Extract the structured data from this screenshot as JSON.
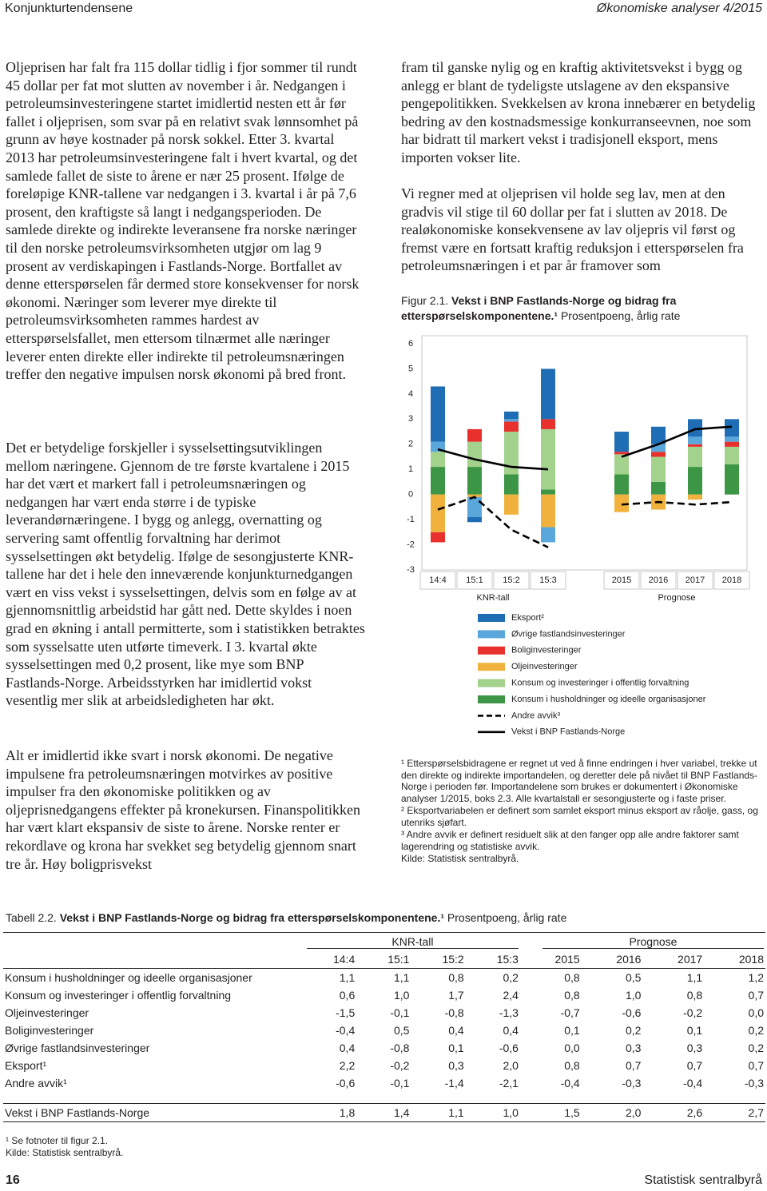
{
  "header": {
    "left": "Konjunkturtendensene",
    "right": "Økonomiske analyser 4/2015"
  },
  "left_column": {
    "paragraphs": [
      "Oljeprisen har falt fra 115 dollar tidlig i fjor sommer til rundt 45 dollar per fat mot slutten av november i år. Nedgangen i petroleumsinvesteringene startet imidlertid nesten ett år før fallet i oljeprisen, som svar på en relativt svak lønnsomhet på grunn av høye kostnader på norsk sokkel. Etter 3. kvartal 2013 har petroleumsinvesteringene falt i hvert kvartal, og det samlede fallet de siste to årene er nær 25 prosent. Ifølge de foreløpige KNR-tallene var nedgangen i 3. kvartal i år på 7,6 prosent, den kraftigste så langt i nedgangsperioden. De samlede direkte og indirekte leveransene fra norske næringer til den norske petroleumsvirksomheten utgjør om lag 9 prosent av verdiskapingen i Fastlands-Norge. Bortfallet av denne etterspørselen får dermed store konsekvenser for norsk økonomi. Næringer som leverer mye direkte til petroleumsvirksomheten rammes hardest av etterspørselsfallet, men ettersom tilnærmet alle næringer leverer enten direkte eller indirekte til petroleumsnæringen treffer den negative impulsen norsk økonomi på bred front.",
      "Det er betydelige forskjeller i sysselsettingsutviklingen mellom næringene. Gjennom de tre første kvartalene i 2015 har det vært et markert fall i petroleumsnæringen og nedgangen har vært enda større i de typiske leverandørnæringene. I bygg og anlegg, overnatting og servering samt offentlig forvaltning har derimot sysselsettingen økt betydelig. Ifølge de sesongjusterte KNR-tallene har det i hele den inneværende konjunkturnedgangen vært en viss vekst i sysselsettingen, delvis som en følge av at gjennomsnittlig arbeidstid har gått ned. Dette skyldes i noen grad en økning i antall permitterte, som i statistikken betraktes som sysselsatte uten utførte timeverk. I 3. kvartal økte sysselsettingen med 0,2 prosent, like mye som BNP Fastlands-Norge. Arbeidsstyrken har imidlertid vokst vesentlig mer slik at arbeidsledigheten har økt.",
      "Alt er imidlertid ikke svart i norsk økonomi. De negative impulsene fra petroleumsnæringen motvirkes av positive impulser fra den økonomiske politikken og av oljeprisnedgangens effekter på kronekursen. Finanspolitikken har vært klart ekspansiv de siste to årene. Norske renter er rekordlave og krona har svekket seg betydelig gjennom snart tre år. Høy boligprisvekst"
    ]
  },
  "right_column": {
    "paragraphs": [
      "fram til ganske nylig og en kraftig aktivitetsvekst i bygg og anlegg er blant de tydeligste utslagene av den ekspansive pengepolitikken. Svekkelsen av krona innebærer en betydelig bedring av den kostnadsmessige konkurranseevnen, noe som har bidratt til markert vekst i tradisjonell eksport, mens importen vokser lite.",
      "Vi regner med at oljeprisen vil holde seg lav, men at den gradvis vil stige til 60 dollar per fat i slutten av 2018. De realøkonomiske konsekvensene av lav oljepris vil først og fremst være en fortsatt kraftig reduksjon i etterspørselen fra petroleumsnæringen i et par år framover som"
    ]
  },
  "chart_data": {
    "type": "bar",
    "stacked": true,
    "figure_label": "Figur 2.1.",
    "title": "Vekst i BNP Fastlands-Norge og bidrag fra etterspørselskomponentene.¹",
    "subtitle": "Prosentpoeng, årlig rate",
    "categories": [
      "14:4",
      "15:1",
      "15:2",
      "15:3",
      null,
      "2015",
      "2016",
      "2017",
      "2018"
    ],
    "group_labels": [
      "KNR-tall",
      "Prognose"
    ],
    "ylim": [
      -3,
      6
    ],
    "yticks": [
      -3,
      -2,
      -1,
      0,
      1,
      2,
      3,
      4,
      5,
      6
    ],
    "grid": false,
    "legend": "bottom",
    "series": [
      {
        "name": "Eksport²",
        "type": "bar",
        "color": "#1f6db5",
        "values": [
          2.2,
          -0.2,
          0.3,
          2.0,
          null,
          0.8,
          0.7,
          0.7,
          0.7
        ]
      },
      {
        "name": "Øvrige fastlandsinvesteringer",
        "type": "bar",
        "color": "#5aa7dc",
        "values": [
          0.4,
          -0.8,
          0.1,
          -0.6,
          null,
          0.0,
          0.3,
          0.3,
          0.2
        ]
      },
      {
        "name": "Boliginvesteringer",
        "type": "bar",
        "color": "#e8302d",
        "values": [
          -0.4,
          0.5,
          0.4,
          0.4,
          null,
          0.1,
          0.2,
          0.1,
          0.2
        ]
      },
      {
        "name": "Oljeinvesteringer",
        "type": "bar",
        "color": "#f0b23c",
        "values": [
          -1.5,
          -0.1,
          -0.8,
          -1.3,
          null,
          -0.7,
          -0.6,
          -0.2,
          0.0
        ]
      },
      {
        "name": "Konsum og investeringer i offentlig forvaltning",
        "type": "bar",
        "color": "#a3d28d",
        "values": [
          0.6,
          1.0,
          1.7,
          2.4,
          null,
          0.8,
          1.0,
          0.8,
          0.7
        ]
      },
      {
        "name": "Konsum i husholdninger og ideelle organisasjoner",
        "type": "bar",
        "color": "#3c9645",
        "values": [
          1.1,
          1.1,
          0.8,
          0.2,
          null,
          0.8,
          0.5,
          1.1,
          1.2
        ]
      },
      {
        "name": "Andre avvik³",
        "type": "line",
        "dash": true,
        "color": "#000000",
        "values": [
          -0.6,
          -0.1,
          -1.4,
          -2.1,
          null,
          -0.4,
          -0.3,
          -0.4,
          -0.3
        ]
      },
      {
        "name": "Vekst i BNP Fastlands-Norge",
        "type": "line",
        "dash": false,
        "color": "#000000",
        "values": [
          1.8,
          1.4,
          1.1,
          1.0,
          null,
          1.5,
          2.0,
          2.6,
          2.7
        ]
      }
    ]
  },
  "figure_notes": {
    "footnotes": [
      "¹ Etterspørselsbidragene er regnet ut ved å finne endringen i hver variabel, trekke ut den direkte og indirekte importandelen, og deretter dele på nivået til BNP Fastlands-Norge i perioden før. Importandelene som brukes er dokumentert i Økonomiske analyser 1/2015, boks 2.3. Alle kvartalstall er sesongjusterte og i faste priser.",
      "² Eksportvariabelen er definert som samlet eksport minus eksport av råolje, gass, og utenriks sjøfart.",
      "³ Andre avvik er definert residuelt slik at den fanger opp alle andre faktorer samt lagerendring og statistiske avvik."
    ],
    "source": "Kilde: Statistisk sentralbyrå."
  },
  "table": {
    "label": "Tabell 2.2.",
    "title": "Vekst i BNP Fastlands-Norge og bidrag fra etterspørselskomponentene.¹",
    "subtitle": "Prosentpoeng, årlig rate",
    "group_headers": [
      "KNR-tall",
      "Prognose"
    ],
    "columns": [
      "14:4",
      "15:1",
      "15:2",
      "15:3",
      "2015",
      "2016",
      "2017",
      "2018"
    ],
    "rows": [
      [
        "Konsum i husholdninger og ideelle organisasjoner",
        "1,1",
        "1,1",
        "0,8",
        "0,2",
        "0,8",
        "0,5",
        "1,1",
        "1,2"
      ],
      [
        "Konsum og investeringer i offentlig forvaltning",
        "0,6",
        "1,0",
        "1,7",
        "2,4",
        "0,8",
        "1,0",
        "0,8",
        "0,7"
      ],
      [
        "Oljeinvesteringer",
        "-1,5",
        "-0,1",
        "-0,8",
        "-1,3",
        "-0,7",
        "-0,6",
        "-0,2",
        "0,0"
      ],
      [
        "Boliginvesteringer",
        "-0,4",
        "0,5",
        "0,4",
        "0,4",
        "0,1",
        "0,2",
        "0,1",
        "0,2"
      ],
      [
        "Øvrige fastlandsinvesteringer",
        "0,4",
        "-0,8",
        "0,1",
        "-0,6",
        "0,0",
        "0,3",
        "0,3",
        "0,2"
      ],
      [
        "Eksport¹",
        "2,2",
        "-0,2",
        "0,3",
        "2,0",
        "0,8",
        "0,7",
        "0,7",
        "0,7"
      ],
      [
        "Andre avvik¹",
        "-0,6",
        "-0,1",
        "-1,4",
        "-2,1",
        "-0,4",
        "-0,3",
        "-0,4",
        "-0,3"
      ]
    ],
    "total_row": [
      "Vekst i BNP Fastlands-Norge",
      "1,8",
      "1,4",
      "1,1",
      "1,0",
      "1,5",
      "2,0",
      "2,6",
      "2,7"
    ],
    "footnotes": [
      "¹ Se fotnoter til figur 2.1.",
      "Kilde: Statistisk sentralbyrå."
    ]
  },
  "footer": {
    "page": "16",
    "publisher": "Statistisk sentralbyrå"
  }
}
